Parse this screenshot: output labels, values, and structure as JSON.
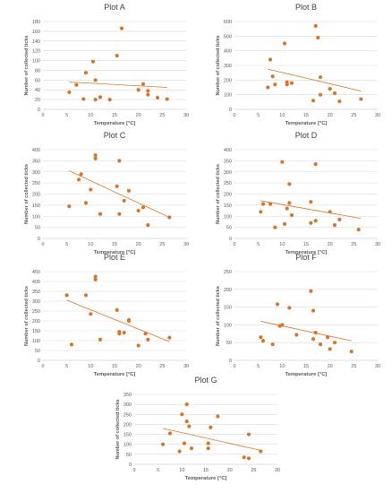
{
  "chart_data": [
    {
      "type": "scatter",
      "title": "Plot A",
      "xlabel": "Temperature [°C]",
      "ylabel": "Number of collected ticks",
      "xlim": [
        0,
        30
      ],
      "ylim": [
        0,
        180
      ],
      "xticks": [
        0,
        5,
        10,
        15,
        20,
        25,
        30
      ],
      "yticks": [
        0,
        20,
        40,
        60,
        80,
        100,
        120,
        140,
        160,
        180
      ],
      "trendline": [
        [
          5.5,
          56
        ],
        [
          26,
          45
        ]
      ],
      "points": [
        [
          5.5,
          35
        ],
        [
          7,
          50
        ],
        [
          8.5,
          21
        ],
        [
          9,
          75
        ],
        [
          10.5,
          98
        ],
        [
          11,
          20
        ],
        [
          11,
          60
        ],
        [
          12,
          25
        ],
        [
          14,
          20
        ],
        [
          15.5,
          110
        ],
        [
          16.5,
          166
        ],
        [
          20,
          40
        ],
        [
          21,
          52
        ],
        [
          22,
          30
        ],
        [
          22,
          38
        ],
        [
          24,
          24
        ],
        [
          26,
          21
        ]
      ]
    },
    {
      "type": "scatter",
      "title": "Plot B",
      "xlabel": "Temperature [°C]",
      "ylabel": "Number of collected ticks",
      "xlim": [
        0,
        30
      ],
      "ylim": [
        0,
        600
      ],
      "xticks": [
        0,
        5,
        10,
        15,
        20,
        25,
        30
      ],
      "yticks": [
        0,
        100,
        200,
        300,
        400,
        500,
        600
      ],
      "trendline": [
        [
          7,
          275
        ],
        [
          26.5,
          125
        ]
      ],
      "points": [
        [
          7,
          150
        ],
        [
          7.5,
          340
        ],
        [
          8,
          225
        ],
        [
          8.5,
          170
        ],
        [
          10.5,
          450
        ],
        [
          11,
          170
        ],
        [
          11,
          185
        ],
        [
          12,
          180
        ],
        [
          16.5,
          60
        ],
        [
          17,
          570
        ],
        [
          17.5,
          490
        ],
        [
          18,
          100
        ],
        [
          18,
          220
        ],
        [
          20,
          140
        ],
        [
          21,
          110
        ],
        [
          22,
          55
        ],
        [
          26.5,
          70
        ]
      ]
    },
    {
      "type": "scatter",
      "title": "Plot C",
      "xlabel": "Temperature [°C]",
      "ylabel": "Number of collected ticks",
      "xlim": [
        0,
        30
      ],
      "ylim": [
        0,
        400
      ],
      "xticks": [
        0,
        5,
        10,
        15,
        20,
        25,
        30
      ],
      "yticks": [
        0,
        50,
        100,
        150,
        200,
        250,
        300,
        350,
        400
      ],
      "trendline": [
        [
          5.5,
          305
        ],
        [
          26.5,
          95
        ]
      ],
      "points": [
        [
          5.5,
          145
        ],
        [
          7.5,
          265
        ],
        [
          8,
          290
        ],
        [
          9,
          160
        ],
        [
          10,
          220
        ],
        [
          11,
          360
        ],
        [
          11,
          375
        ],
        [
          12,
          110
        ],
        [
          15.5,
          235
        ],
        [
          16,
          110
        ],
        [
          16,
          350
        ],
        [
          17,
          170
        ],
        [
          18,
          215
        ],
        [
          20,
          125
        ],
        [
          21,
          140
        ],
        [
          22,
          60
        ],
        [
          26.5,
          95
        ]
      ]
    },
    {
      "type": "scatter",
      "title": "Plot D",
      "xlabel": "Temperature [°C]",
      "ylabel": "Number of collected ticks",
      "xlim": [
        0,
        30
      ],
      "ylim": [
        0,
        400
      ],
      "xticks": [
        0,
        5,
        10,
        15,
        20,
        25,
        30
      ],
      "yticks": [
        0,
        50,
        100,
        150,
        200,
        250,
        300,
        350,
        400
      ],
      "trendline": [
        [
          5.5,
          170
        ],
        [
          26.5,
          90
        ]
      ],
      "points": [
        [
          5.5,
          120
        ],
        [
          6,
          155
        ],
        [
          7.5,
          155
        ],
        [
          8.5,
          50
        ],
        [
          10,
          345
        ],
        [
          10.5,
          65
        ],
        [
          11,
          135
        ],
        [
          11.5,
          160
        ],
        [
          11.5,
          245
        ],
        [
          12,
          105
        ],
        [
          16,
          70
        ],
        [
          16,
          165
        ],
        [
          17,
          335
        ],
        [
          17,
          80
        ],
        [
          20,
          120
        ],
        [
          21,
          60
        ],
        [
          22,
          85
        ],
        [
          26,
          40
        ]
      ]
    },
    {
      "type": "scatter",
      "title": "Plot E",
      "xlabel": "Temperature [°C]",
      "ylabel": "Number of collected ticks",
      "xlim": [
        0,
        30
      ],
      "ylim": [
        0,
        450
      ],
      "xticks": [
        0,
        5,
        10,
        15,
        20,
        25,
        30
      ],
      "yticks": [
        0,
        50,
        100,
        150,
        200,
        250,
        300,
        350,
        400,
        450
      ],
      "trendline": [
        [
          5,
          305
        ],
        [
          26.5,
          95
        ]
      ],
      "points": [
        [
          5,
          330
        ],
        [
          6,
          80
        ],
        [
          9,
          330
        ],
        [
          10,
          235
        ],
        [
          11,
          410
        ],
        [
          11,
          425
        ],
        [
          12,
          105
        ],
        [
          15.5,
          255
        ],
        [
          16,
          135
        ],
        [
          16,
          145
        ],
        [
          17,
          140
        ],
        [
          18,
          200
        ],
        [
          18,
          205
        ],
        [
          20,
          75
        ],
        [
          21.5,
          135
        ],
        [
          22,
          105
        ],
        [
          26.5,
          115
        ]
      ]
    },
    {
      "type": "scatter",
      "title": "Plot F",
      "xlabel": "Temperature [°C]",
      "ylabel": "Number of collected ticks",
      "xlim": [
        0,
        30
      ],
      "ylim": [
        0,
        250
      ],
      "xticks": [
        0,
        5,
        10,
        15,
        20,
        25,
        30
      ],
      "yticks": [
        0,
        50,
        100,
        150,
        200,
        250
      ],
      "trendline": [
        [
          5.5,
          110
        ],
        [
          24.5,
          55
        ]
      ],
      "points": [
        [
          5.5,
          65
        ],
        [
          6,
          55
        ],
        [
          8,
          45
        ],
        [
          9,
          158
        ],
        [
          9.5,
          97
        ],
        [
          10,
          100
        ],
        [
          11.5,
          148
        ],
        [
          13,
          72
        ],
        [
          16,
          195
        ],
        [
          16.5,
          140
        ],
        [
          16.5,
          60
        ],
        [
          17,
          78
        ],
        [
          18,
          45
        ],
        [
          19.5,
          65
        ],
        [
          20,
          32
        ],
        [
          21,
          50
        ],
        [
          24.5,
          25
        ]
      ]
    },
    {
      "type": "scatter",
      "title": "Plot G",
      "xlabel": "Temperature [°C]",
      "ylabel": "Number of collected ticks",
      "xlim": [
        0,
        30
      ],
      "ylim": [
        0,
        350
      ],
      "xticks": [
        0,
        5,
        10,
        15,
        20,
        25,
        30
      ],
      "yticks": [
        0,
        50,
        100,
        150,
        200,
        250,
        300,
        350
      ],
      "trendline": [
        [
          6,
          180
        ],
        [
          26.5,
          70
        ]
      ],
      "points": [
        [
          6,
          100
        ],
        [
          7.5,
          155
        ],
        [
          9.5,
          65
        ],
        [
          10,
          250
        ],
        [
          10.5,
          105
        ],
        [
          11,
          300
        ],
        [
          11,
          215
        ],
        [
          11.5,
          190
        ],
        [
          12,
          80
        ],
        [
          15.5,
          80
        ],
        [
          15.5,
          105
        ],
        [
          16,
          185
        ],
        [
          17.5,
          240
        ],
        [
          23,
          35
        ],
        [
          24,
          30
        ],
        [
          24,
          150
        ],
        [
          26.5,
          65
        ]
      ]
    }
  ]
}
